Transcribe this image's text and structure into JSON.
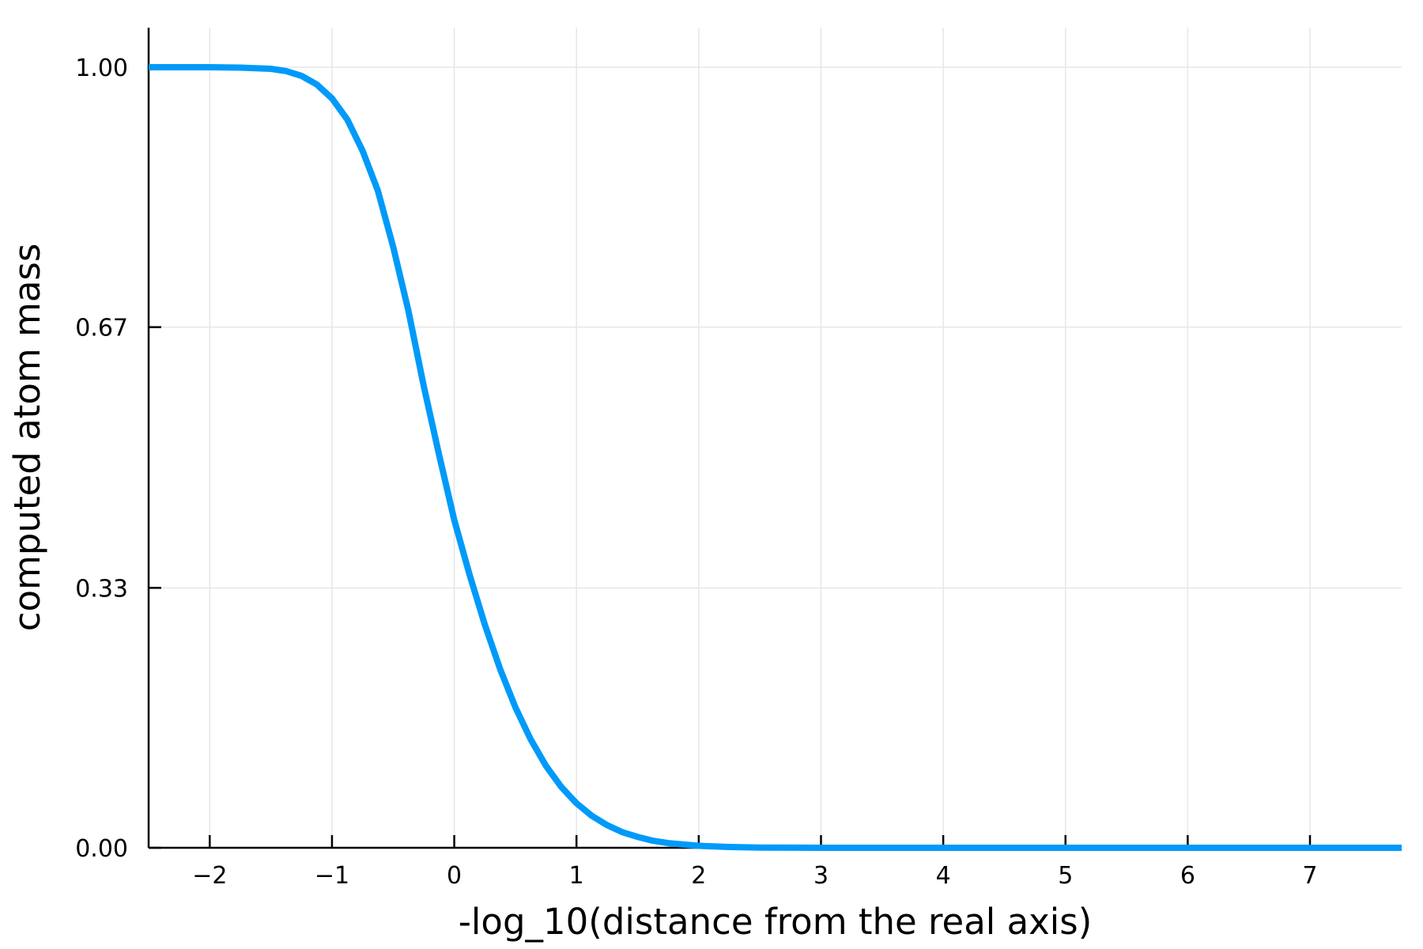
{
  "chart_data": {
    "type": "line",
    "title": "",
    "xlabel": "-log_10(distance from the real axis)",
    "ylabel": "computed atom mass",
    "xlim": [
      -2.5,
      7.75
    ],
    "ylim": [
      0.0,
      1.0
    ],
    "xticks": [
      -2,
      -1,
      0,
      1,
      2,
      3,
      4,
      5,
      6,
      7
    ],
    "xtick_labels": [
      "−2",
      "−1",
      "0",
      "1",
      "2",
      "3",
      "4",
      "5",
      "6",
      "7"
    ],
    "yticks": [
      0.0,
      0.333,
      0.667,
      1.0
    ],
    "ytick_labels": [
      "0.00",
      "0.33",
      "0.67",
      "1.00"
    ],
    "grid": true,
    "legend": "none",
    "series": [
      {
        "color": "#009af9",
        "x": [
          -2.5,
          -2.25,
          -2.0,
          -1.75,
          -1.5,
          -1.375,
          -1.25,
          -1.125,
          -1.0,
          -0.875,
          -0.75,
          -0.625,
          -0.5,
          -0.375,
          -0.25,
          -0.125,
          0.0,
          0.125,
          0.25,
          0.375,
          0.5,
          0.625,
          0.75,
          0.875,
          1.0,
          1.125,
          1.25,
          1.375,
          1.5,
          1.625,
          1.75,
          2.0,
          2.25,
          2.5,
          3.0,
          4.0,
          5.0,
          6.0,
          7.0,
          7.75
        ],
        "y": [
          1.0,
          1.0,
          1.0,
          0.9995,
          0.998,
          0.995,
          0.989,
          0.978,
          0.96,
          0.933,
          0.893,
          0.842,
          0.77,
          0.688,
          0.592,
          0.504,
          0.42,
          0.35,
          0.286,
          0.229,
          0.18,
          0.139,
          0.105,
          0.078,
          0.057,
          0.041,
          0.029,
          0.02,
          0.014,
          0.009,
          0.006,
          0.0025,
          0.001,
          0.0003,
          3e-05,
          0.0,
          0.0,
          0.0,
          0.0,
          0.0
        ]
      }
    ]
  }
}
